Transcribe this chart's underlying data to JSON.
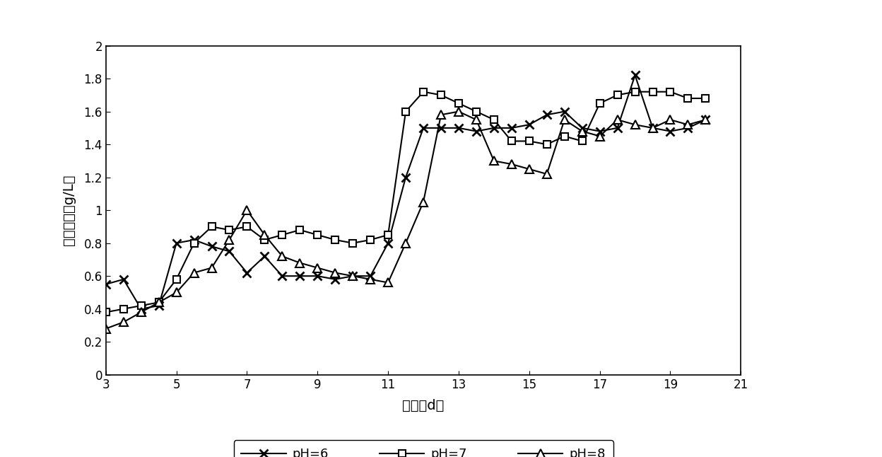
{
  "ph6_x": [
    3,
    3.5,
    4,
    4.5,
    5,
    5.5,
    6,
    6.5,
    7,
    7.5,
    8,
    8.5,
    9,
    9.5,
    10,
    10.5,
    11,
    11.5,
    12,
    12.5,
    13,
    13.5,
    14,
    14.5,
    15,
    15.5,
    16,
    16.5,
    17,
    17.5,
    18,
    18.5,
    19,
    19.5,
    20
  ],
  "ph6_y": [
    0.55,
    0.58,
    0.4,
    0.42,
    0.8,
    0.82,
    0.78,
    0.75,
    0.62,
    0.72,
    0.6,
    0.6,
    0.6,
    0.58,
    0.6,
    0.6,
    0.8,
    1.2,
    1.5,
    1.5,
    1.5,
    1.48,
    1.5,
    1.5,
    1.52,
    1.58,
    1.6,
    1.5,
    1.48,
    1.5,
    1.82,
    1.5,
    1.48,
    1.5,
    1.55
  ],
  "ph7_x": [
    3,
    3.5,
    4,
    4.5,
    5,
    5.5,
    6,
    6.5,
    7,
    7.5,
    8,
    8.5,
    9,
    9.5,
    10,
    10.5,
    11,
    11.5,
    12,
    12.5,
    13,
    13.5,
    14,
    14.5,
    15,
    15.5,
    16,
    16.5,
    17,
    17.5,
    18,
    18.5,
    19,
    19.5,
    20
  ],
  "ph7_y": [
    0.38,
    0.4,
    0.42,
    0.44,
    0.58,
    0.8,
    0.9,
    0.88,
    0.9,
    0.82,
    0.85,
    0.88,
    0.85,
    0.82,
    0.8,
    0.82,
    0.85,
    1.6,
    1.72,
    1.7,
    1.65,
    1.6,
    1.55,
    1.42,
    1.42,
    1.4,
    1.45,
    1.42,
    1.65,
    1.7,
    1.72,
    1.72,
    1.72,
    1.68,
    1.68
  ],
  "ph8_x": [
    3,
    3.5,
    4,
    4.5,
    5,
    5.5,
    6,
    6.5,
    7,
    7.5,
    8,
    8.5,
    9,
    9.5,
    10,
    10.5,
    11,
    11.5,
    12,
    12.5,
    13,
    13.5,
    14,
    14.5,
    15,
    15.5,
    16,
    16.5,
    17,
    17.5,
    18,
    18.5,
    19,
    19.5,
    20
  ],
  "ph8_y": [
    0.28,
    0.32,
    0.38,
    0.44,
    0.5,
    0.62,
    0.65,
    0.82,
    1.0,
    0.85,
    0.72,
    0.68,
    0.65,
    0.62,
    0.6,
    0.58,
    0.56,
    0.8,
    1.05,
    1.58,
    1.6,
    1.55,
    1.3,
    1.28,
    1.25,
    1.22,
    1.55,
    1.48,
    1.45,
    1.55,
    1.52,
    1.5,
    1.55,
    1.52,
    1.55
  ],
  "xlabel": "时间（d）",
  "ylabel": "乙酸浓度（g/L）",
  "xlim": [
    3,
    21
  ],
  "ylim": [
    0,
    2.0
  ],
  "xticks": [
    3,
    5,
    7,
    9,
    11,
    13,
    15,
    17,
    19,
    21
  ],
  "yticks": [
    0,
    0.2,
    0.4,
    0.6,
    0.8,
    1.0,
    1.2,
    1.4,
    1.6,
    1.8,
    2.0
  ],
  "legend_labels": [
    "pH=6",
    "pH=7",
    "pH=8"
  ],
  "line_color": "#000000",
  "bg_color": "#ffffff"
}
